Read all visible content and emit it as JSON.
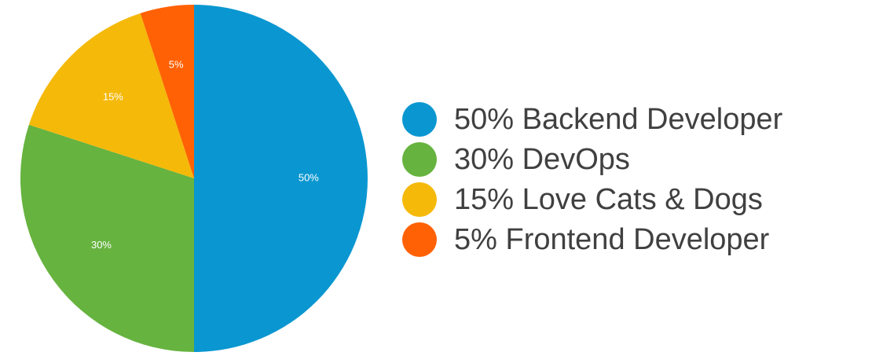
{
  "chart_data": {
    "type": "pie",
    "slices": [
      {
        "label": "Backend Developer",
        "value": 50,
        "slice_label": "50%",
        "legend": "50% Backend Developer",
        "color": "#0a97d1"
      },
      {
        "label": "DevOps",
        "value": 30,
        "slice_label": "30%",
        "legend": "30% DevOps",
        "color": "#66b33f"
      },
      {
        "label": "Love Cats & Dogs",
        "value": 15,
        "slice_label": "15%",
        "legend": "15% Love Cats & Dogs",
        "color": "#f5b90a"
      },
      {
        "label": "Frontend Developer",
        "value": 5,
        "slice_label": "5%",
        "legend": "5% Frontend Developer",
        "color": "#ff6104"
      }
    ],
    "start_angle": "12 o'clock",
    "direction": "clockwise",
    "legend_position": "right"
  }
}
